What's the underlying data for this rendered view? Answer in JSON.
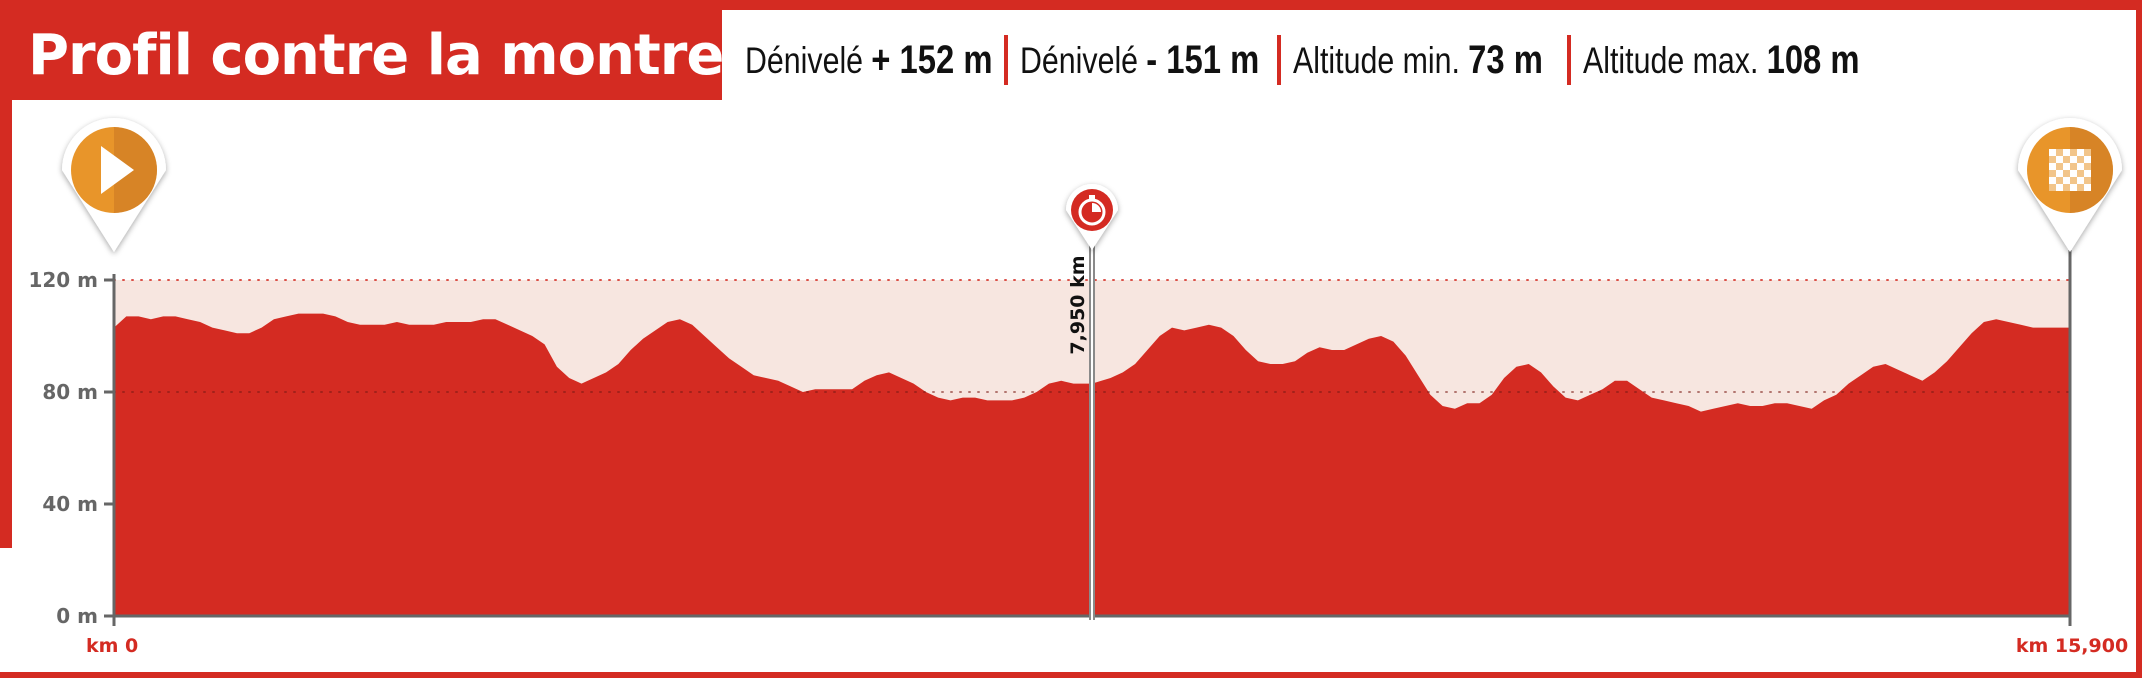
{
  "title": "Profil contre la montre",
  "stats": [
    {
      "label": "Dénivelé",
      "value": "+ 152 m"
    },
    {
      "label": "Dénivelé",
      "value": "- 151 m"
    },
    {
      "label": "Altitude min.",
      "value": "73 m"
    },
    {
      "label": "Altitude max.",
      "value": "108 m"
    }
  ],
  "colors": {
    "brand_red": "#d42b22",
    "band": "#f7e6e0",
    "marker_orange": "#e8952a",
    "axis_grey": "#666666"
  },
  "markers": {
    "start_icon": "play-icon",
    "checkpoint_icon": "stopwatch-icon",
    "finish_icon": "checkered-flag-icon"
  },
  "chart_data": {
    "type": "area",
    "ylim": [
      0,
      120
    ],
    "xlim": [
      0,
      15.9
    ],
    "y_ticks": [
      {
        "value": 0,
        "label": "0 m"
      },
      {
        "value": 40,
        "label": "40 m"
      },
      {
        "value": 80,
        "label": "80 m"
      },
      {
        "value": 120,
        "label": "120 m"
      }
    ],
    "x_labels": [
      {
        "value": 0,
        "label": "km 0"
      },
      {
        "value": 15.9,
        "label": "km 15,900"
      }
    ],
    "checkpoint": {
      "x": 7.95,
      "label": "7,950 km"
    },
    "grid": "dotted at 80 and 120",
    "profile": [
      [
        0.0,
        103
      ],
      [
        0.1,
        107
      ],
      [
        0.2,
        107
      ],
      [
        0.3,
        106
      ],
      [
        0.4,
        107
      ],
      [
        0.5,
        107
      ],
      [
        0.6,
        106
      ],
      [
        0.7,
        105
      ],
      [
        0.8,
        103
      ],
      [
        0.9,
        102
      ],
      [
        1.0,
        101
      ],
      [
        1.1,
        101
      ],
      [
        1.2,
        103
      ],
      [
        1.3,
        106
      ],
      [
        1.4,
        107
      ],
      [
        1.5,
        108
      ],
      [
        1.6,
        108
      ],
      [
        1.7,
        108
      ],
      [
        1.8,
        107
      ],
      [
        1.9,
        105
      ],
      [
        2.0,
        104
      ],
      [
        2.1,
        104
      ],
      [
        2.2,
        104
      ],
      [
        2.3,
        105
      ],
      [
        2.4,
        104
      ],
      [
        2.5,
        104
      ],
      [
        2.6,
        104
      ],
      [
        2.7,
        105
      ],
      [
        2.8,
        105
      ],
      [
        2.9,
        105
      ],
      [
        3.0,
        106
      ],
      [
        3.1,
        106
      ],
      [
        3.2,
        104
      ],
      [
        3.3,
        102
      ],
      [
        3.4,
        100
      ],
      [
        3.5,
        97
      ],
      [
        3.6,
        89
      ],
      [
        3.7,
        85
      ],
      [
        3.8,
        83
      ],
      [
        3.9,
        85
      ],
      [
        4.0,
        87
      ],
      [
        4.1,
        90
      ],
      [
        4.2,
        95
      ],
      [
        4.3,
        99
      ],
      [
        4.4,
        102
      ],
      [
        4.5,
        105
      ],
      [
        4.6,
        106
      ],
      [
        4.7,
        104
      ],
      [
        4.8,
        100
      ],
      [
        4.9,
        96
      ],
      [
        5.0,
        92
      ],
      [
        5.1,
        89
      ],
      [
        5.2,
        86
      ],
      [
        5.3,
        85
      ],
      [
        5.4,
        84
      ],
      [
        5.5,
        82
      ],
      [
        5.6,
        80
      ],
      [
        5.7,
        81
      ],
      [
        5.8,
        81
      ],
      [
        5.9,
        81
      ],
      [
        6.0,
        81
      ],
      [
        6.1,
        84
      ],
      [
        6.2,
        86
      ],
      [
        6.3,
        87
      ],
      [
        6.4,
        85
      ],
      [
        6.5,
        83
      ],
      [
        6.6,
        80
      ],
      [
        6.7,
        78
      ],
      [
        6.8,
        77
      ],
      [
        6.9,
        78
      ],
      [
        7.0,
        78
      ],
      [
        7.1,
        77
      ],
      [
        7.2,
        77
      ],
      [
        7.3,
        77
      ],
      [
        7.4,
        78
      ],
      [
        7.5,
        80
      ],
      [
        7.6,
        83
      ],
      [
        7.7,
        84
      ],
      [
        7.8,
        83
      ],
      [
        7.95,
        83
      ],
      [
        8.1,
        85
      ],
      [
        8.2,
        87
      ],
      [
        8.3,
        90
      ],
      [
        8.4,
        95
      ],
      [
        8.5,
        100
      ],
      [
        8.6,
        103
      ],
      [
        8.7,
        102
      ],
      [
        8.8,
        103
      ],
      [
        8.9,
        104
      ],
      [
        9.0,
        103
      ],
      [
        9.1,
        100
      ],
      [
        9.2,
        95
      ],
      [
        9.3,
        91
      ],
      [
        9.4,
        90
      ],
      [
        9.5,
        90
      ],
      [
        9.6,
        91
      ],
      [
        9.7,
        94
      ],
      [
        9.8,
        96
      ],
      [
        9.9,
        95
      ],
      [
        10.0,
        95
      ],
      [
        10.1,
        97
      ],
      [
        10.2,
        99
      ],
      [
        10.3,
        100
      ],
      [
        10.4,
        98
      ],
      [
        10.5,
        93
      ],
      [
        10.6,
        86
      ],
      [
        10.7,
        79
      ],
      [
        10.8,
        75
      ],
      [
        10.9,
        74
      ],
      [
        11.0,
        76
      ],
      [
        11.1,
        76
      ],
      [
        11.2,
        79
      ],
      [
        11.3,
        85
      ],
      [
        11.4,
        89
      ],
      [
        11.5,
        90
      ],
      [
        11.6,
        87
      ],
      [
        11.7,
        82
      ],
      [
        11.8,
        78
      ],
      [
        11.9,
        77
      ],
      [
        12.0,
        79
      ],
      [
        12.1,
        81
      ],
      [
        12.2,
        84
      ],
      [
        12.3,
        84
      ],
      [
        12.4,
        81
      ],
      [
        12.5,
        78
      ],
      [
        12.6,
        77
      ],
      [
        12.7,
        76
      ],
      [
        12.8,
        75
      ],
      [
        12.9,
        73
      ],
      [
        13.0,
        74
      ],
      [
        13.1,
        75
      ],
      [
        13.2,
        76
      ],
      [
        13.3,
        75
      ],
      [
        13.4,
        75
      ],
      [
        13.5,
        76
      ],
      [
        13.6,
        76
      ],
      [
        13.7,
        75
      ],
      [
        13.8,
        74
      ],
      [
        13.9,
        77
      ],
      [
        14.0,
        79
      ],
      [
        14.1,
        83
      ],
      [
        14.2,
        86
      ],
      [
        14.3,
        89
      ],
      [
        14.4,
        90
      ],
      [
        14.5,
        88
      ],
      [
        14.6,
        86
      ],
      [
        14.7,
        84
      ],
      [
        14.8,
        87
      ],
      [
        14.9,
        91
      ],
      [
        15.0,
        96
      ],
      [
        15.1,
        101
      ],
      [
        15.2,
        105
      ],
      [
        15.3,
        106
      ],
      [
        15.4,
        105
      ],
      [
        15.5,
        104
      ],
      [
        15.6,
        103
      ],
      [
        15.7,
        103
      ],
      [
        15.8,
        103
      ],
      [
        15.9,
        103
      ]
    ]
  }
}
